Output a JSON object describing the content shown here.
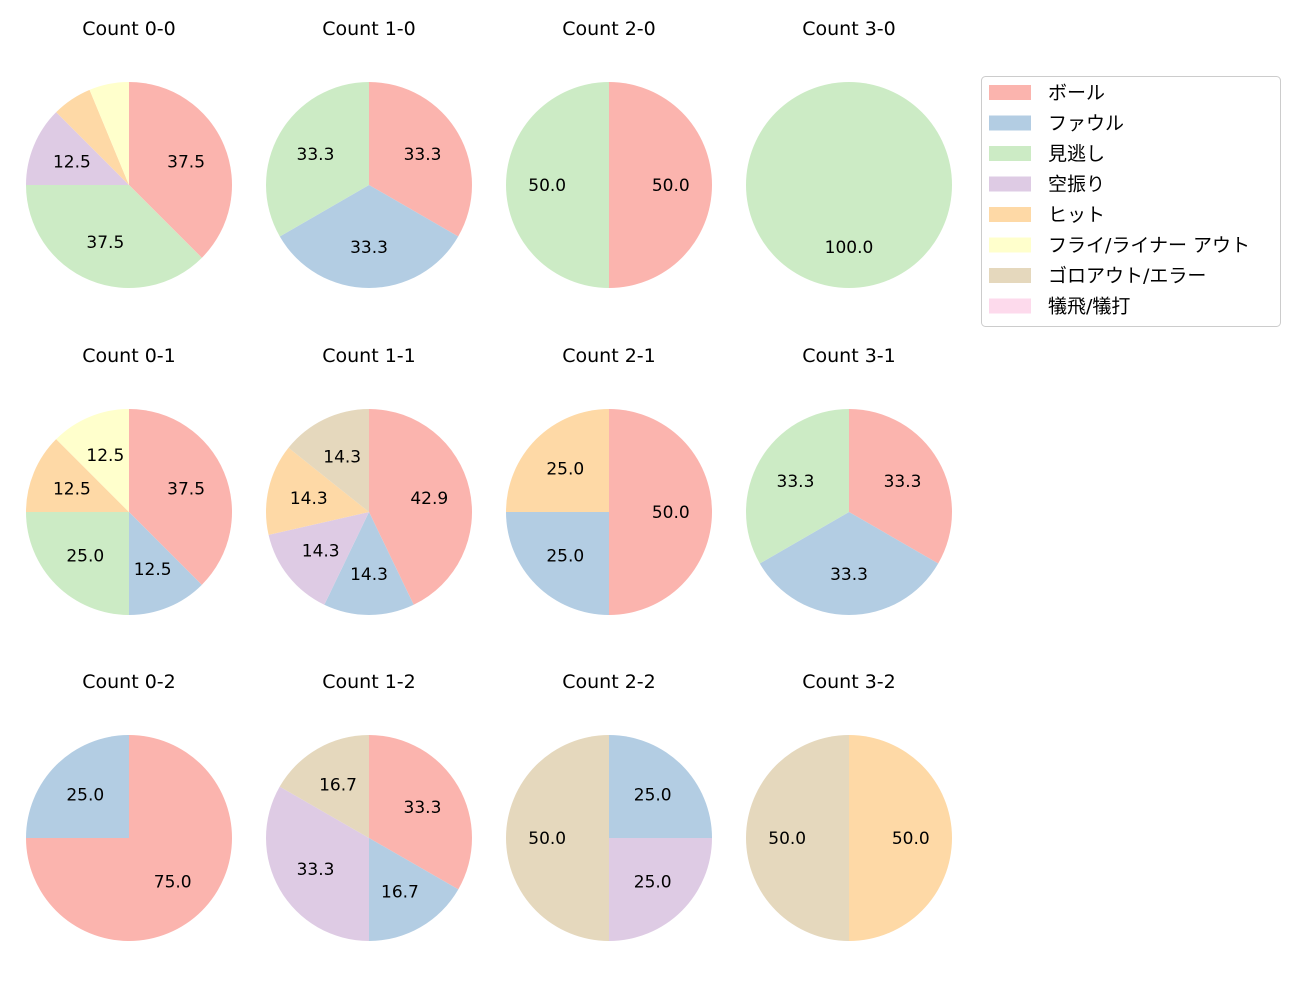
{
  "chart_data": {
    "type": "pie",
    "start_angle": 90,
    "direction": "clockwise",
    "categories": [
      "ボール",
      "ファウル",
      "見逃し",
      "空振り",
      "ヒット",
      "フライ/ライナー アウト",
      "ゴロアウト/エラー",
      "犠飛/犠打"
    ],
    "colors": [
      "#fbb4ae",
      "#b3cde3",
      "#ccebc5",
      "#decbe4",
      "#fed9a6",
      "#ffffcc",
      "#e5d8bd",
      "#fddaec"
    ],
    "legend_position": "right",
    "pies": [
      {
        "title": "Count 0-0",
        "values": [
          37.5,
          0,
          37.5,
          12.5,
          6.25,
          6.25,
          0,
          0
        ],
        "labels": [
          "37.5",
          "",
          "37.5",
          "12.5",
          "",
          "",
          "",
          ""
        ]
      },
      {
        "title": "Count 1-0",
        "values": [
          33.3,
          33.3,
          33.3,
          0,
          0,
          0,
          0,
          0
        ],
        "labels": [
          "33.3",
          "33.3",
          "33.3",
          "",
          "",
          "",
          "",
          ""
        ]
      },
      {
        "title": "Count 2-0",
        "values": [
          50,
          0,
          50,
          0,
          0,
          0,
          0,
          0
        ],
        "labels": [
          "50.0",
          "",
          "50.0",
          "",
          "",
          "",
          "",
          ""
        ]
      },
      {
        "title": "Count 3-0",
        "values": [
          0,
          0,
          100,
          0,
          0,
          0,
          0,
          0
        ],
        "labels": [
          "",
          "",
          "100.0",
          "",
          "",
          "",
          "",
          ""
        ]
      },
      {
        "title": "Count 0-1",
        "values": [
          37.5,
          12.5,
          25,
          0,
          12.5,
          12.5,
          0,
          0
        ],
        "labels": [
          "37.5",
          "12.5",
          "25.0",
          "",
          "12.5",
          "12.5",
          "",
          ""
        ]
      },
      {
        "title": "Count 1-1",
        "values": [
          42.9,
          14.3,
          0,
          14.3,
          14.3,
          0,
          14.3,
          0
        ],
        "labels": [
          "42.9",
          "14.3",
          "",
          "14.3",
          "14.3",
          "",
          "14.3",
          ""
        ]
      },
      {
        "title": "Count 2-1",
        "values": [
          50,
          25,
          0,
          0,
          25,
          0,
          0,
          0
        ],
        "labels": [
          "50.0",
          "25.0",
          "",
          "",
          "25.0",
          "",
          "",
          ""
        ]
      },
      {
        "title": "Count 3-1",
        "values": [
          33.3,
          33.3,
          33.3,
          0,
          0,
          0,
          0,
          0
        ],
        "labels": [
          "33.3",
          "33.3",
          "33.3",
          "",
          "",
          "",
          "",
          ""
        ]
      },
      {
        "title": "Count 0-2",
        "values": [
          75,
          25,
          0,
          0,
          0,
          0,
          0,
          0
        ],
        "labels": [
          "75.0",
          "25.0",
          "",
          "",
          "",
          "",
          "",
          ""
        ]
      },
      {
        "title": "Count 1-2",
        "values": [
          33.3,
          16.7,
          0,
          33.3,
          0,
          0,
          16.7,
          0
        ],
        "labels": [
          "33.3",
          "16.7",
          "",
          "33.3",
          "",
          "",
          "16.7",
          ""
        ]
      },
      {
        "title": "Count 2-2",
        "values": [
          0,
          25,
          0,
          25,
          0,
          0,
          50,
          0
        ],
        "labels": [
          "",
          "25.0",
          "",
          "25.0",
          "",
          "",
          "50.0",
          ""
        ]
      },
      {
        "title": "Count 3-2",
        "values": [
          0,
          0,
          0,
          0,
          50,
          0,
          50,
          0
        ],
        "labels": [
          "",
          "",
          "",
          "",
          "50.0",
          "",
          "50.0",
          ""
        ]
      }
    ]
  }
}
